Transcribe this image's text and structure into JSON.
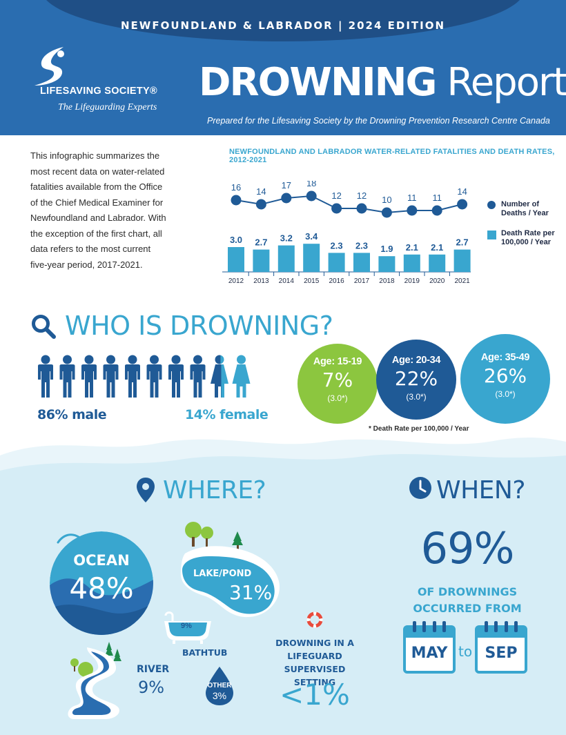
{
  "header": {
    "edition": "NEWFOUNDLAND & LABRADOR  |  2024 EDITION",
    "logo_name": "LIFESAVING SOCIETY®",
    "logo_tagline": "The Lifeguarding Experts",
    "title_bold": "DROWNING",
    "title_light": "Report",
    "prepared_by": "Prepared for the Lifesaving Society by the Drowning Prevention Research Centre Canada"
  },
  "intro": "This infographic summarizes the most recent data on water-related fatalities available from the Office of the Chief Medical Examiner for Newfoundland and Labrador. With the exception of the first chart, all data refers to the most current five-year period, 2017-2021.",
  "chart_data": {
    "type": "bar",
    "title": "NEWFOUNDLAND AND LABRADOR WATER-RELATED FATALITIES AND DEATH RATES, 2012-2021",
    "categories": [
      "2012",
      "2013",
      "2014",
      "2015",
      "2016",
      "2017",
      "2018",
      "2019",
      "2020",
      "2021"
    ],
    "series": [
      {
        "name": "Number of Deaths / Year",
        "type": "line",
        "values": [
          16,
          14,
          17,
          18,
          12,
          12,
          10,
          11,
          11,
          14
        ]
      },
      {
        "name": "Death Rate per 100,000 / Year",
        "type": "bar",
        "values": [
          3.0,
          2.7,
          3.2,
          3.4,
          2.3,
          2.3,
          1.9,
          2.1,
          2.1,
          2.7
        ]
      }
    ],
    "legend": [
      "Number of Deaths / Year",
      "Death Rate per 100,000 / Year"
    ],
    "legend_position": "right",
    "colors": {
      "line": "#1f5a96",
      "bar": "#39a6cf",
      "label": "#1f5a96"
    }
  },
  "who": {
    "title": "WHO IS DROWNING?",
    "male_pct": "86% male",
    "female_pct": "14% female",
    "male_share": 0.86,
    "ages": [
      {
        "label": "Age: 15-19",
        "pct": "7%",
        "rate": "(3.0*)"
      },
      {
        "label": "Age: 20-34",
        "pct": "22%",
        "rate": "(3.0*)"
      },
      {
        "label": "Age: 35-49",
        "pct": "26%",
        "rate": "(3.0*)"
      }
    ],
    "rate_note": "* Death Rate per 100,000 / Year"
  },
  "where": {
    "title": "WHERE?",
    "ocean_label": "OCEAN",
    "ocean_pct": "48%",
    "lake_label": "LAKE/POND",
    "lake_pct": "31%",
    "bath_pct": "9%",
    "bath_label": "BATHTUB",
    "river_label": "RIVER",
    "river_pct": "9%",
    "other_label": "OTHER",
    "other_pct": "3%",
    "guard_text": "DROWNING IN A LIFEGUARD SUPERVISED SETTING",
    "guard_pct": "<1%"
  },
  "when": {
    "title": "WHEN?",
    "pct": "69%",
    "text": "OF DROWNINGS OCCURRED FROM",
    "from": "MAY",
    "to_word": "to",
    "to": "SEP"
  },
  "colors": {
    "navy": "#1f5a96",
    "blue": "#2a6db0",
    "teal": "#39a6cf",
    "green": "#8cc63f",
    "light_water": "#d6edf6"
  }
}
